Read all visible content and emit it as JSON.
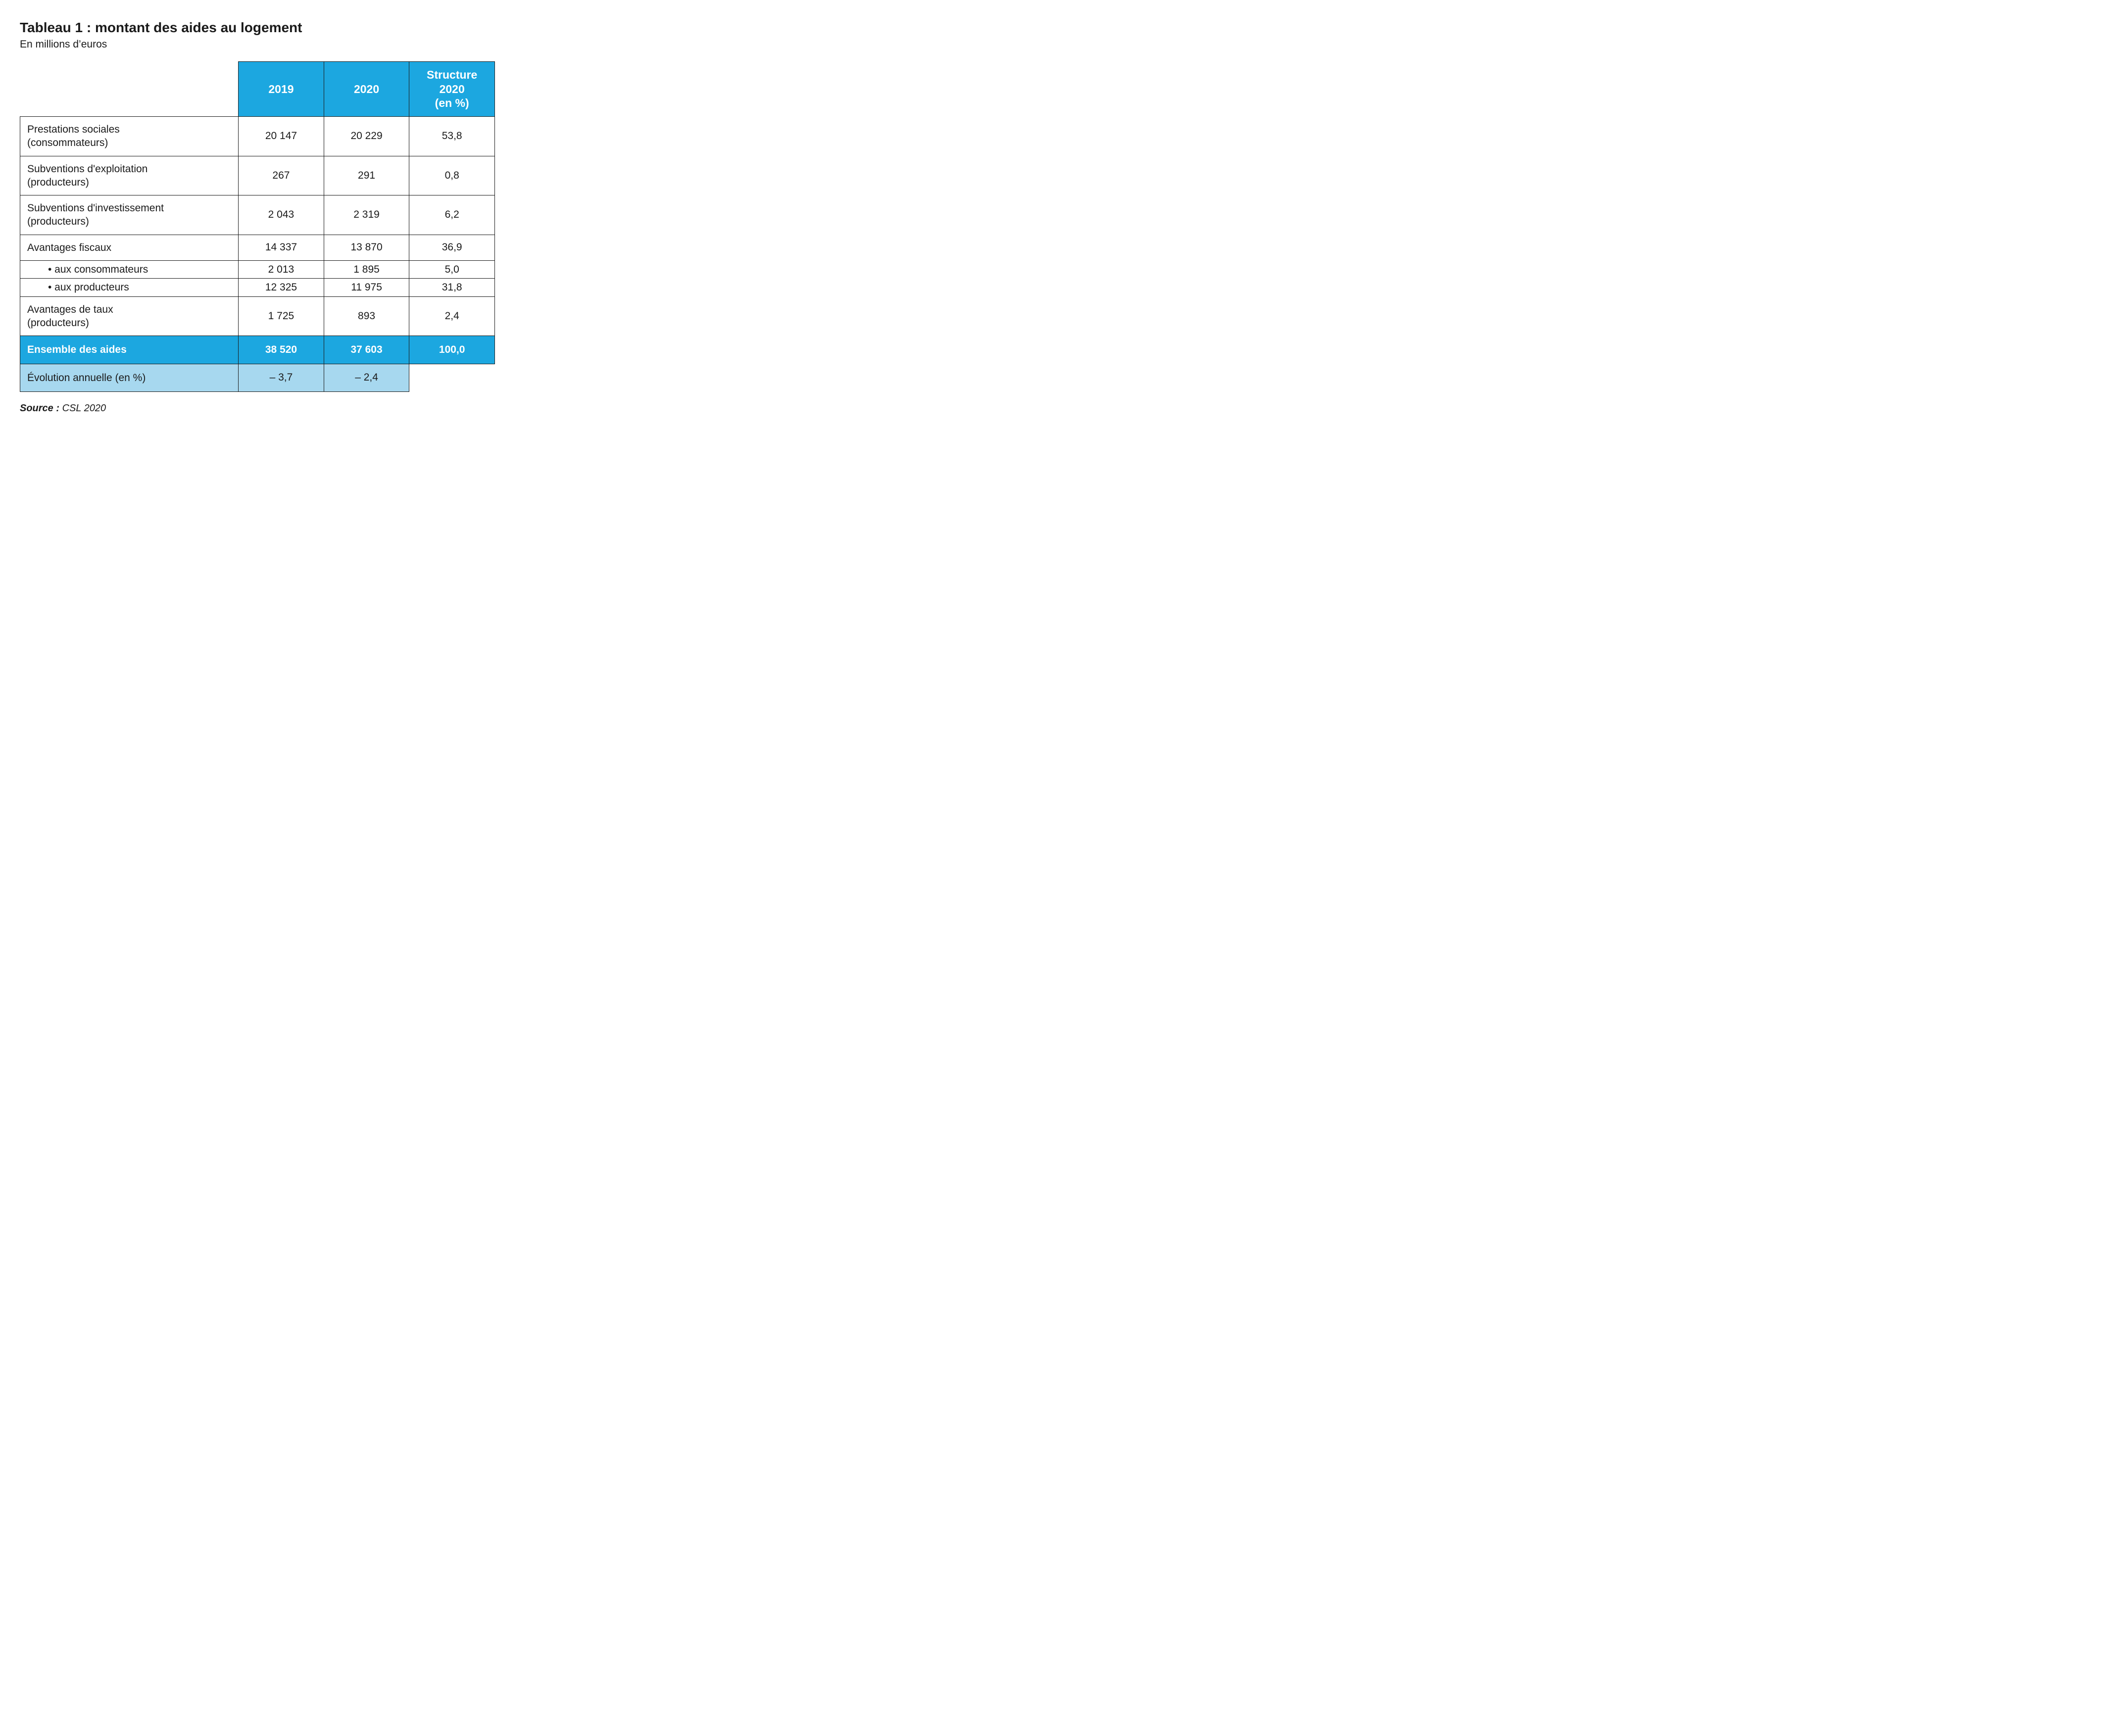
{
  "title": "Tableau 1 : montant des aides au logement",
  "subtitle": "En millions d’euros",
  "columns": {
    "y2019": "2019",
    "y2020": "2020",
    "structure": "Structure\n2020\n(en %)"
  },
  "rows": [
    {
      "label": "Prestations sociales\n(consommateurs)",
      "y2019": "20 147",
      "y2020": "20 229",
      "structure": "53,8",
      "kind": "normal"
    },
    {
      "label": "Subventions d'exploitation\n(producteurs)",
      "y2019": "267",
      "y2020": "291",
      "structure": "0,8",
      "kind": "normal"
    },
    {
      "label": "Subventions d'investissement\n(producteurs)",
      "y2019": "2 043",
      "y2020": "2 319",
      "structure": "6,2",
      "kind": "normal"
    },
    {
      "label": "Avantages fiscaux",
      "y2019": "14 337",
      "y2020": "13 870",
      "structure": "36,9",
      "kind": "normal"
    },
    {
      "label": "• aux consommateurs",
      "y2019": "2 013",
      "y2020": "1 895",
      "structure": "5,0",
      "kind": "sub"
    },
    {
      "label": "• aux producteurs",
      "y2019": "12 325",
      "y2020": "11 975",
      "structure": "31,8",
      "kind": "sub"
    },
    {
      "label": "Avantages de taux\n(producteurs)",
      "y2019": "1 725",
      "y2020": "893",
      "structure": "2,4",
      "kind": "normal"
    }
  ],
  "total": {
    "label": "Ensemble des aides",
    "y2019": "38 520",
    "y2020": "37 603",
    "structure": "100,0"
  },
  "evolution": {
    "label": "Évolution annuelle (en %)",
    "y2019": "– 3,7",
    "y2020": "– 2,4"
  },
  "source": {
    "label": "Source :",
    "text": " CSL 2020"
  },
  "style": {
    "type": "table",
    "header_bg": "#1ca7e0",
    "header_fg": "#ffffff",
    "total_bg": "#1ca7e0",
    "total_fg": "#ffffff",
    "evolution_bg": "#a7d8ef",
    "border_color": "#1a1a1a",
    "background_color": "#ffffff",
    "title_fontsize_pt": 21,
    "body_fontsize_pt": 16,
    "font_family": "Arial"
  }
}
